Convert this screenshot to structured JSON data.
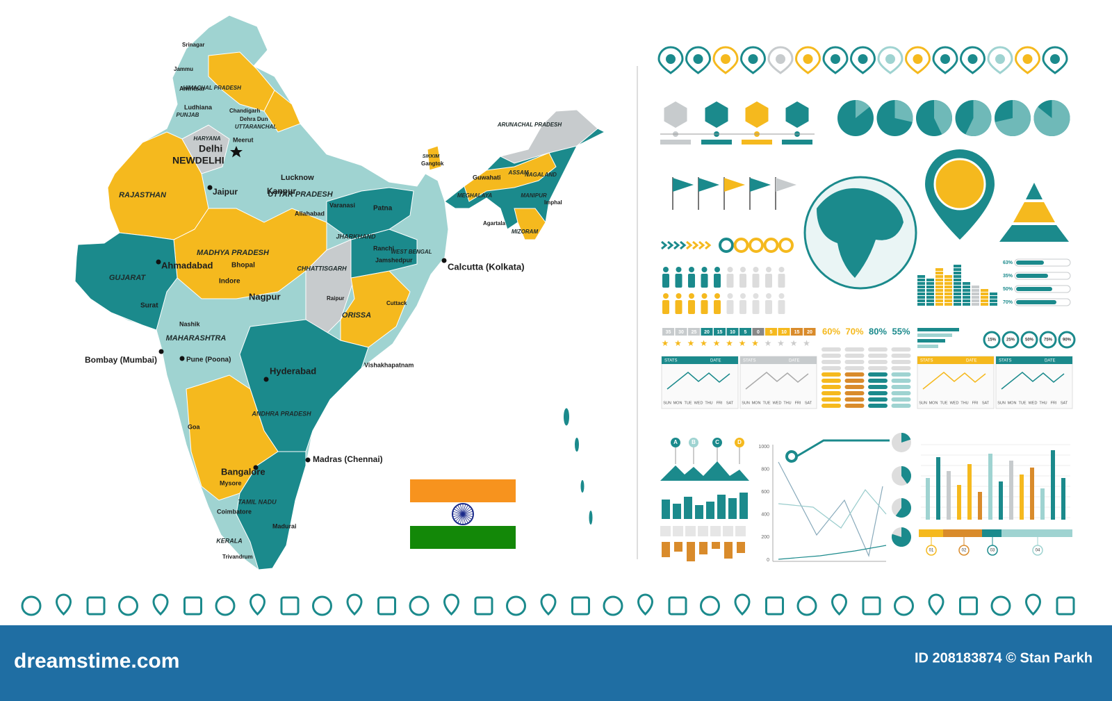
{
  "map": {
    "cities": [
      "Srinagar",
      "Jammu",
      "Amritsar",
      "Ludhiana",
      "Chandigarh",
      "Dehra Dun",
      "Delhi",
      "NEWDELHI",
      "Meerut",
      "Jaipur",
      "Lucknow",
      "Kanpur",
      "Allahabad",
      "Varanasi",
      "Patna",
      "Gangtok",
      "Guwahati",
      "Imphal",
      "Agartala",
      "Ahmadabad",
      "Bhopal",
      "Indore",
      "Surat",
      "Nagpur",
      "Raipur",
      "Ranchi",
      "Jamshedpur",
      "Calcutta (Kolkata)",
      "Cuttack",
      "Nashik",
      "Bombay (Mumbai)",
      "Pune (Poona)",
      "Hyderabad",
      "Vishakhapatnam",
      "Goa",
      "Bangalore",
      "Mysore",
      "Madras (Chennai)",
      "Coimbatore",
      "Madurai",
      "Trivandrum"
    ],
    "states": [
      "HIMACHAL PRADESH",
      "PUNJAB",
      "HARYANA",
      "UTTARANCHAL",
      "RAJASTHAN",
      "UTTAR PRADESH",
      "GUJARAT",
      "MADHYA PRADESH",
      "CHHATTISGARH",
      "JHARKHAND",
      "WEST BENGAL",
      "ORISSA",
      "MAHARASHTRA",
      "ANDHRA PRADESH",
      "TAMIL NADU",
      "KERALA",
      "SIKKIM",
      "ARUNACHAL PRADESH",
      "ASSAM",
      "NAGALAND",
      "MEGHALAYA",
      "MANIPUR",
      "MIZORAM"
    ]
  },
  "infographic": {
    "scale": [
      35,
      30,
      25,
      20,
      15,
      10,
      5,
      0,
      5,
      10,
      15,
      20
    ],
    "percents": [
      "60%",
      "70%",
      "80%",
      "55%"
    ],
    "progress": [
      "63%",
      "35%",
      "50%",
      "70%"
    ],
    "rings": [
      "15%",
      "25%",
      "50%",
      "75%",
      "90%"
    ],
    "tabs": [
      "STATS",
      "DATE"
    ],
    "days": [
      "SUN",
      "MON",
      "TUE",
      "WED",
      "THU",
      "FRI",
      "SAT"
    ],
    "letters": [
      "A",
      "B",
      "C",
      "D"
    ],
    "axis": [
      1000,
      800,
      600,
      400,
      200,
      0
    ],
    "steps": [
      "01",
      "02",
      "03",
      "04"
    ]
  },
  "footer": {
    "site": "dreamstime.com",
    "credit": "ID 208183874 © Stan Parkh"
  }
}
